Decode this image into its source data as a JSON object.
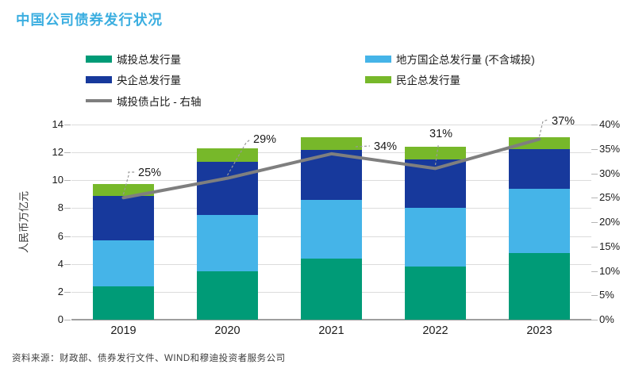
{
  "title": "中国公司债券发行状况",
  "colors": {
    "title": "#3BAEE0",
    "chengtou": "#009B77",
    "local_soe": "#45B4E8",
    "central_soe": "#17399C",
    "private": "#77B82A",
    "line": "#7F7F7F",
    "grid": "#DCDCDC"
  },
  "legend": [
    {
      "label": "城投总发行量",
      "color": "#009B77",
      "shape": "rect"
    },
    {
      "label": "地方国企总发行量 (不含城投)",
      "color": "#45B4E8",
      "shape": "rect"
    },
    {
      "label": "央企总发行量",
      "color": "#17399C",
      "shape": "rect"
    },
    {
      "label": "民企总发行量",
      "color": "#77B82A",
      "shape": "rect"
    },
    {
      "label": "城投债占比 - 右轴",
      "color": "#7F7F7F",
      "shape": "line"
    }
  ],
  "chart_data": {
    "type": "bar",
    "subtype": "stacked-bar-with-line",
    "categories": [
      "2019",
      "2020",
      "2021",
      "2022",
      "2023"
    ],
    "series": [
      {
        "name": "城投总发行量",
        "color": "#009B77",
        "values": [
          2.4,
          3.5,
          4.4,
          3.8,
          4.8
        ]
      },
      {
        "name": "地方国企总发行量 (不含城投)",
        "color": "#45B4E8",
        "values": [
          3.3,
          4.0,
          4.2,
          4.2,
          4.6
        ]
      },
      {
        "name": "央企总发行量",
        "color": "#17399C",
        "values": [
          3.2,
          3.8,
          3.6,
          3.5,
          2.85
        ]
      },
      {
        "name": "民企总发行量",
        "color": "#77B82A",
        "values": [
          0.85,
          1.0,
          0.9,
          0.9,
          0.85
        ]
      }
    ],
    "line_series": {
      "name": "城投债占比 - 右轴",
      "axis": "right",
      "color": "#7F7F7F",
      "values": [
        25,
        29,
        34,
        31,
        37
      ],
      "point_labels": [
        "25%",
        "29%",
        "34%",
        "31%",
        "37%"
      ]
    },
    "ylabel_left": "人民币万亿元",
    "ylim_left": [
      0,
      14
    ],
    "left_ticks": [
      "0",
      "2",
      "4",
      "6",
      "8",
      "10",
      "12",
      "14"
    ],
    "ylim_right": [
      0,
      40
    ],
    "right_ticks": [
      "0%",
      "5%",
      "10%",
      "15%",
      "20%",
      "25%",
      "30%",
      "35%",
      "40%"
    ],
    "grid": true,
    "legend_position": "top"
  },
  "source": "资料来源：财政部、债券发行文件、WIND和穆迪投资者服务公司"
}
